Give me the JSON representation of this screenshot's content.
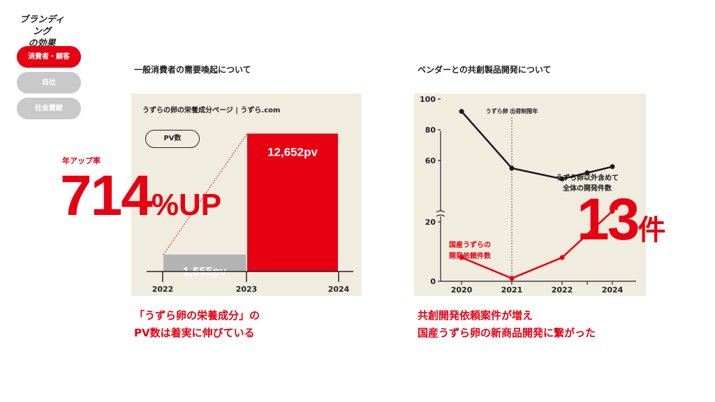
{
  "brand": {
    "line1": "ブランディング",
    "line2": "の効果"
  },
  "nav": {
    "items": [
      {
        "label": "消費者・顧客",
        "active": true
      },
      {
        "label": "自社",
        "active": false
      },
      {
        "label": "社会貢献",
        "active": false
      }
    ]
  },
  "left": {
    "heading": "一般消費者の需要喚起について",
    "panel_title": "うずらの卵の栄養成分ページ | うずら.com",
    "pill_label": "PV数",
    "rate_label": "年アップ率",
    "rate_value": "714",
    "rate_unit": "%UP",
    "caption_line1": "「うずら卵の栄養成分」の",
    "caption_line2": "PV数は着実に伸びている"
  },
  "right": {
    "heading": "ベンダーとの共創製品開発について",
    "count_value": "13",
    "count_unit": "件",
    "caption_line1": "共創開発依頼案件が増え",
    "caption_line2": "国産うずら卵の新商品開発に繋がった"
  },
  "chart_data": [
    {
      "type": "bar",
      "title": "うずらの卵の栄養成分ページ | うずら.com",
      "x_ticks": [
        "2022",
        "2023",
        "2024"
      ],
      "bars": [
        {
          "from": "2022",
          "to": "2023",
          "value": 1555,
          "label": "1,555pv",
          "color": "#b3b3b3"
        },
        {
          "from": "2023",
          "to": "2024",
          "value": 12652,
          "label": "12,652pv",
          "color": "#e60012"
        }
      ],
      "ylim": [
        0,
        13000
      ],
      "grid": false,
      "legend": "none"
    },
    {
      "type": "line",
      "x": [
        "2020",
        "2021",
        "2022",
        "2024"
      ],
      "y_ticks": [
        0,
        20,
        60,
        80,
        100
      ],
      "y_axis_break": [
        20,
        60
      ],
      "annotation": "うずら卵 出荷制限年",
      "annotation_x": "2021",
      "series": [
        {
          "name": "うずら卵以外含めて全体の開発件数",
          "label_line1": "うずら卵以外含めて",
          "label_line2": "全体の開発件数",
          "color": "#1a1a1a",
          "x": [
            "2020",
            "2021",
            "2022",
            "2023",
            "2024"
          ],
          "values": [
            92,
            55,
            48,
            52,
            56
          ]
        },
        {
          "name": "国産うずらの開発依頼件数",
          "label_line1": "国産うずらの",
          "label_line2": "開発依頼件数",
          "color": "#e60012",
          "x": [
            "2020",
            "2021",
            "2022",
            "2024"
          ],
          "values": [
            8,
            1,
            8,
            27
          ]
        }
      ],
      "grid": false,
      "legend": "none"
    }
  ]
}
